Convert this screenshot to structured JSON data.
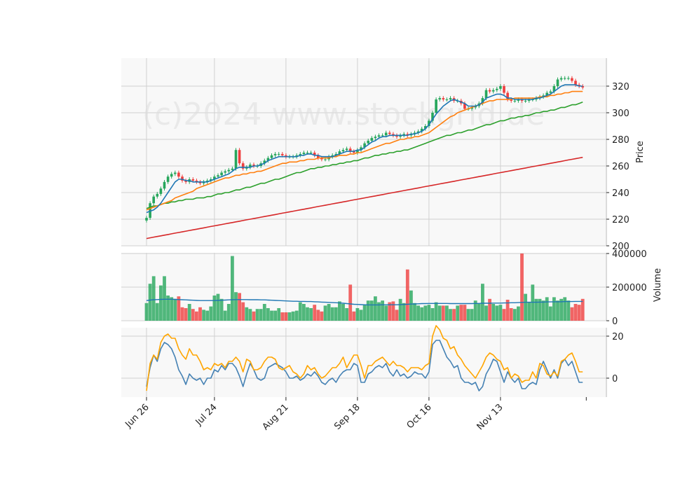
{
  "watermark": "(c)2024 www.stockgrid.de",
  "chart_data": [
    {
      "type": "candlestick",
      "panel": "price",
      "ylabel": "Price",
      "ylim": [
        200,
        337
      ],
      "y_ticks": [
        "200",
        "220",
        "240",
        "260",
        "280",
        "300",
        "320"
      ],
      "grid": true,
      "x_tick_labels": [
        "Jun 26",
        "Jul 24",
        "Aug 21",
        "Sep 18",
        "Oct 16",
        "Nov 13"
      ],
      "x_tick_index": [
        0,
        19,
        39,
        59,
        79,
        99
      ],
      "close": [
        221,
        232,
        237,
        239,
        243,
        248,
        252,
        254,
        255,
        252,
        249,
        248,
        250,
        249,
        248,
        247,
        248,
        249,
        250,
        252,
        253,
        255,
        256,
        257,
        258,
        272,
        262,
        258,
        259,
        261,
        260,
        260,
        262,
        264,
        266,
        268,
        269,
        269,
        268,
        267,
        267,
        267,
        268,
        269,
        270,
        270,
        270,
        268,
        266,
        265,
        265,
        267,
        268,
        269,
        271,
        272,
        273,
        271,
        270,
        272,
        274,
        277,
        279,
        281,
        282,
        283,
        283,
        285,
        284,
        283,
        282,
        283,
        284,
        283,
        284,
        285,
        286,
        288,
        290,
        294,
        300,
        310,
        311,
        310,
        310,
        311,
        309,
        309,
        307,
        303,
        303,
        304,
        305,
        307,
        311,
        317,
        316,
        317,
        318,
        320,
        315,
        310,
        309,
        309,
        310,
        309,
        309,
        310,
        310,
        311,
        312,
        313,
        315,
        316,
        320,
        325,
        326,
        326,
        326,
        324,
        321,
        320,
        319
      ],
      "ma_fast": [
        225,
        226,
        227,
        229,
        232,
        236,
        240,
        244,
        248,
        250,
        250,
        249,
        249,
        248,
        248,
        248,
        248,
        248,
        249,
        250,
        251,
        252,
        253,
        254,
        256,
        258,
        259,
        259,
        259,
        259,
        260,
        260,
        261,
        262,
        264,
        265,
        266,
        267,
        267,
        267,
        267,
        267,
        267,
        268,
        268,
        269,
        269,
        268,
        268,
        267,
        267,
        267,
        267,
        268,
        269,
        270,
        271,
        271,
        271,
        272,
        272,
        274,
        276,
        278,
        279,
        281,
        282,
        282,
        283,
        283,
        283,
        283,
        283,
        283,
        284,
        284,
        285,
        286,
        288,
        291,
        295,
        299,
        302,
        305,
        307,
        309,
        310,
        309,
        308,
        307,
        305,
        305,
        305,
        306,
        308,
        311,
        312,
        313,
        314,
        314,
        313,
        311,
        311,
        310,
        310,
        310,
        310,
        310,
        310,
        311,
        311,
        312,
        313,
        314,
        316,
        318,
        320,
        321,
        321,
        321,
        321,
        320,
        320
      ],
      "ma_mid": [
        227,
        228,
        229,
        230,
        231,
        232,
        233,
        234,
        236,
        237,
        238,
        239,
        240,
        241,
        243,
        244,
        245,
        246,
        247,
        248,
        249,
        250,
        251,
        251,
        252,
        253,
        253,
        254,
        254,
        255,
        255,
        256,
        256,
        257,
        258,
        259,
        260,
        261,
        262,
        262,
        263,
        263,
        263,
        264,
        264,
        265,
        265,
        265,
        266,
        266,
        266,
        266,
        267,
        267,
        268,
        268,
        268,
        269,
        269,
        270,
        270,
        271,
        272,
        273,
        274,
        275,
        276,
        277,
        277,
        278,
        279,
        280,
        280,
        281,
        281,
        282,
        282,
        283,
        284,
        285,
        287,
        289,
        291,
        293,
        295,
        297,
        298,
        300,
        301,
        302,
        303,
        304,
        305,
        306,
        307,
        308,
        309,
        309,
        310,
        310,
        310,
        310,
        310,
        311,
        311,
        311,
        311,
        311,
        311,
        311,
        312,
        312,
        312,
        313,
        313,
        314,
        314,
        315,
        315,
        316,
        316,
        316,
        316
      ],
      "ma_slow": [
        228,
        229,
        230,
        230,
        231,
        232,
        232,
        233,
        233,
        234,
        234,
        235,
        235,
        235,
        236,
        236,
        236,
        237,
        237,
        238,
        239,
        239,
        240,
        240,
        241,
        242,
        242,
        243,
        244,
        244,
        245,
        246,
        247,
        247,
        248,
        249,
        250,
        250,
        251,
        252,
        253,
        254,
        255,
        255,
        256,
        257,
        258,
        258,
        259,
        259,
        260,
        260,
        261,
        261,
        262,
        262,
        263,
        263,
        264,
        264,
        265,
        266,
        266,
        267,
        268,
        268,
        269,
        269,
        270,
        270,
        271,
        271,
        272,
        272,
        273,
        274,
        275,
        276,
        277,
        278,
        279,
        280,
        281,
        282,
        283,
        283,
        284,
        285,
        285,
        286,
        287,
        287,
        288,
        289,
        290,
        291,
        291,
        292,
        293,
        294,
        294,
        295,
        296,
        296,
        297,
        297,
        298,
        298,
        299,
        300,
        300,
        301,
        301,
        302,
        302,
        303,
        304,
        304,
        305,
        306,
        306,
        307,
        308
      ],
      "ma_long": [
        205.5,
        206.0,
        206.5,
        207.0,
        207.5,
        208.0,
        208.5,
        209.0,
        209.5,
        210.0,
        210.5,
        211.0,
        211.5,
        212.0,
        212.5,
        213.0,
        213.5,
        214.0,
        214.5,
        215.0,
        215.5,
        216.0,
        216.5,
        217.0,
        217.5,
        218.0,
        218.5,
        219.0,
        219.5,
        220.0,
        220.5,
        221.0,
        221.5,
        222.0,
        222.5,
        223.0,
        223.5,
        224.0,
        224.5,
        225.0,
        225.5,
        226.0,
        226.5,
        227.0,
        227.5,
        228.0,
        228.5,
        229.0,
        229.5,
        230.0,
        230.5,
        231.0,
        231.5,
        232.0,
        232.5,
        233.0,
        233.5,
        234.0,
        234.5,
        235.0,
        235.5,
        236.0,
        236.5,
        237.0,
        237.5,
        238.0,
        238.5,
        239.0,
        239.5,
        240.0,
        240.5,
        241.0,
        241.5,
        242.0,
        242.5,
        243.0,
        243.5,
        244.0,
        244.5,
        245.0,
        245.5,
        246.0,
        246.5,
        247.0,
        247.5,
        248.0,
        248.5,
        249.0,
        249.5,
        250.0,
        250.5,
        251.0,
        251.5,
        252.0,
        252.5,
        253.0,
        253.5,
        254.0,
        254.5,
        255.0,
        255.5,
        256.0,
        256.5,
        257.0,
        257.5,
        258.0,
        258.5,
        259.0,
        259.5,
        260.0,
        260.5,
        261.0,
        261.5,
        262.0,
        262.5,
        263.0,
        263.5,
        264.0,
        264.5,
        265.0,
        265.5,
        266.0,
        266.5
      ],
      "colors": {
        "up": "#26a65b",
        "down": "#ef3e3e",
        "ma_fast": "#1f77b4",
        "ma_mid": "#ff7f0e",
        "ma_slow": "#2ca02c",
        "ma_long": "#d62728"
      }
    },
    {
      "type": "bar",
      "panel": "volume",
      "ylabel": "Volume",
      "ylim": [
        0,
        400000
      ],
      "y_ticks": [
        "0",
        "200000",
        "400000"
      ],
      "values": [
        105000,
        220000,
        265000,
        105000,
        210000,
        265000,
        150000,
        140000,
        130000,
        145000,
        80000,
        75000,
        100000,
        70000,
        55000,
        80000,
        65000,
        60000,
        85000,
        150000,
        160000,
        130000,
        60000,
        100000,
        385000,
        170000,
        165000,
        110000,
        80000,
        70000,
        55000,
        70000,
        70000,
        100000,
        75000,
        60000,
        60000,
        75000,
        50000,
        50000,
        50000,
        55000,
        60000,
        110000,
        100000,
        80000,
        75000,
        95000,
        65000,
        55000,
        90000,
        100000,
        80000,
        80000,
        115000,
        100000,
        75000,
        215000,
        55000,
        75000,
        65000,
        95000,
        120000,
        120000,
        145000,
        110000,
        120000,
        90000,
        110000,
        115000,
        65000,
        130000,
        105000,
        305000,
        180000,
        105000,
        90000,
        80000,
        90000,
        95000,
        75000,
        110000,
        90000,
        90000,
        90000,
        70000,
        70000,
        90000,
        95000,
        95000,
        70000,
        70000,
        120000,
        100000,
        220000,
        90000,
        130000,
        100000,
        90000,
        95000,
        70000,
        125000,
        75000,
        70000,
        85000,
        400000,
        160000,
        110000,
        215000,
        130000,
        130000,
        120000,
        140000,
        85000,
        140000,
        120000,
        130000,
        140000,
        120000,
        80000,
        100000,
        95000,
        130000
      ],
      "ma": [
        120000,
        123000,
        125000,
        126000,
        127000,
        128000,
        128000,
        128000,
        127000,
        126000,
        125000,
        124000,
        123000,
        122000,
        121000,
        120000,
        120000,
        120000,
        120000,
        120000,
        121000,
        122000,
        123000,
        124000,
        125000,
        126000,
        126000,
        126000,
        126000,
        125000,
        125000,
        125000,
        124000,
        124000,
        123000,
        122000,
        121000,
        120000,
        119000,
        118000,
        117000,
        116000,
        116000,
        115000,
        115000,
        114000,
        114000,
        113000,
        112000,
        111000,
        110000,
        109000,
        108000,
        107000,
        106000,
        104000,
        102000,
        100000,
        98000,
        97000,
        96000,
        95000,
        94000,
        94000,
        94000,
        94000,
        95000,
        95000,
        95000,
        95000,
        95000,
        96000,
        97000,
        98000,
        99000,
        100000,
        101000,
        102000,
        102000,
        103000,
        103000,
        103000,
        103000,
        103000,
        103000,
        102000,
        102000,
        102000,
        102000,
        102000,
        102000,
        102000,
        103000,
        103000,
        104000,
        104000,
        104000,
        105000,
        105000,
        105000,
        106000,
        106000,
        107000,
        107000,
        108000,
        109000,
        110000,
        110000,
        110000,
        110000,
        111000,
        111000,
        112000,
        112000,
        113000,
        113000,
        113000,
        114000,
        114000,
        114000,
        115000,
        115000,
        115000
      ],
      "ma_color": "#1f77b4"
    },
    {
      "type": "line",
      "panel": "indicator",
      "ylim": [
        -10,
        25
      ],
      "y_ticks": [
        "0",
        "20"
      ],
      "series": [
        {
          "color": "#4682b4",
          "values": [
            -4,
            5,
            11,
            8,
            14,
            17,
            16,
            14,
            10,
            4,
            1,
            -3,
            2,
            0,
            -1,
            0,
            -3,
            0,
            0,
            4,
            3,
            6,
            4,
            7,
            7,
            5,
            1,
            -4,
            2,
            7,
            4,
            0,
            -1,
            0,
            5,
            6,
            7,
            6,
            5,
            3,
            0,
            0,
            1,
            -1,
            0,
            2,
            1,
            3,
            1,
            -2,
            -3,
            -1,
            0,
            -2,
            1,
            3,
            4,
            4,
            7,
            6,
            -2,
            -2,
            2,
            3,
            5,
            6,
            5,
            7,
            3,
            1,
            4,
            1,
            2,
            0,
            1,
            3,
            2,
            2,
            0,
            3,
            16,
            18,
            18,
            14,
            10,
            8,
            5,
            6,
            0,
            -2,
            -2,
            -3,
            -2,
            -6,
            -4,
            2,
            5,
            9,
            8,
            3,
            -2,
            3,
            0,
            -2,
            0,
            -5,
            -5,
            -3,
            -2,
            -3,
            4,
            8,
            4,
            0,
            4,
            0,
            7,
            9,
            6,
            8,
            3,
            -2,
            -2
          ]
        },
        {
          "color": "#ffa500",
          "values": [
            -6,
            7,
            11,
            9,
            17,
            20,
            21,
            19,
            19,
            14,
            11,
            9,
            14,
            11,
            11,
            8,
            4,
            5,
            4,
            7,
            6,
            7,
            5,
            8,
            8,
            10,
            8,
            3,
            9,
            8,
            4,
            4,
            5,
            8,
            10,
            10,
            9,
            5,
            4,
            5,
            6,
            3,
            2,
            0,
            2,
            6,
            4,
            5,
            2,
            0,
            1,
            3,
            5,
            5,
            7,
            10,
            5,
            8,
            11,
            11,
            6,
            0,
            6,
            6,
            8,
            9,
            10,
            8,
            6,
            8,
            6,
            6,
            5,
            3,
            5,
            5,
            5,
            4,
            6,
            7,
            20,
            25,
            23,
            19,
            18,
            14,
            15,
            11,
            9,
            6,
            4,
            2,
            0,
            3,
            6,
            10,
            12,
            11,
            9,
            8,
            4,
            5,
            0,
            2,
            1,
            -2,
            -1,
            -1,
            3,
            0,
            7,
            6,
            2,
            1,
            3,
            1,
            8,
            9,
            11,
            12,
            8,
            3,
            3
          ]
        }
      ]
    }
  ]
}
